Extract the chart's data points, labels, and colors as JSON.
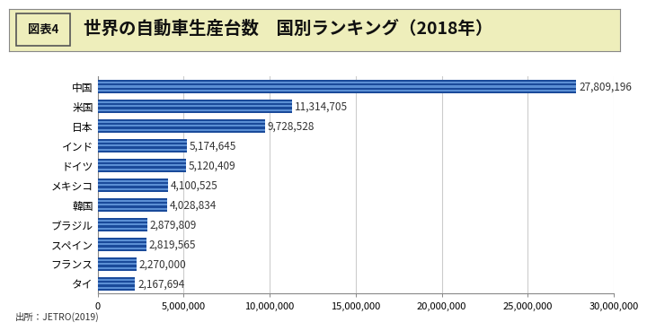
{
  "title": "世界の自動車生産台数　国別ランキング（2018年）",
  "title_label": "図表4",
  "source": "出所：JETRO(2019)",
  "categories": [
    "タイ",
    "フランス",
    "スペイン",
    "ブラジル",
    "韓国",
    "メキシコ",
    "ドイツ",
    "インド",
    "日本",
    "米国",
    "中国"
  ],
  "values": [
    2167694,
    2270000,
    2819565,
    2879809,
    4028834,
    4100525,
    5120409,
    5174645,
    9728528,
    11314705,
    27809196
  ],
  "value_labels": [
    "2,167,694",
    "2,270,000",
    "2,819,565",
    "2,879,809",
    "4,028,834",
    "4,100,525",
    "5,120,409",
    "5,174,645",
    "9,728,528",
    "11,314,705",
    "27,809,196"
  ],
  "bar_colors": [
    "#1e56a8",
    "#4d7fcc",
    "#1e56a8",
    "#4d7fcc",
    "#1e56a8",
    "#4d7fcc",
    "#1e56a8"
  ],
  "bar_color_dark": "#1a4a9a",
  "bar_color_light": "#5b8fd4",
  "bar_color_lighter": "#aec8e8",
  "xlim": [
    0,
    30000000
  ],
  "xticks": [
    0,
    5000000,
    10000000,
    15000000,
    20000000,
    25000000,
    30000000
  ],
  "xtick_labels": [
    "0",
    "5,000,000",
    "10,000,000",
    "15,000,000",
    "20,000,000",
    "25,000,000",
    "30,000,000"
  ],
  "header_bg": "#eeeebb",
  "header_border": "#999999",
  "fig_bg": "#ffffff",
  "plot_bg": "#ffffff",
  "grid_color": "#cccccc",
  "bar_height": 0.7,
  "n_stripes": 7,
  "title_fontsize": 14,
  "label_fontsize": 8.5,
  "tick_fontsize": 8,
  "value_fontsize": 8.5
}
